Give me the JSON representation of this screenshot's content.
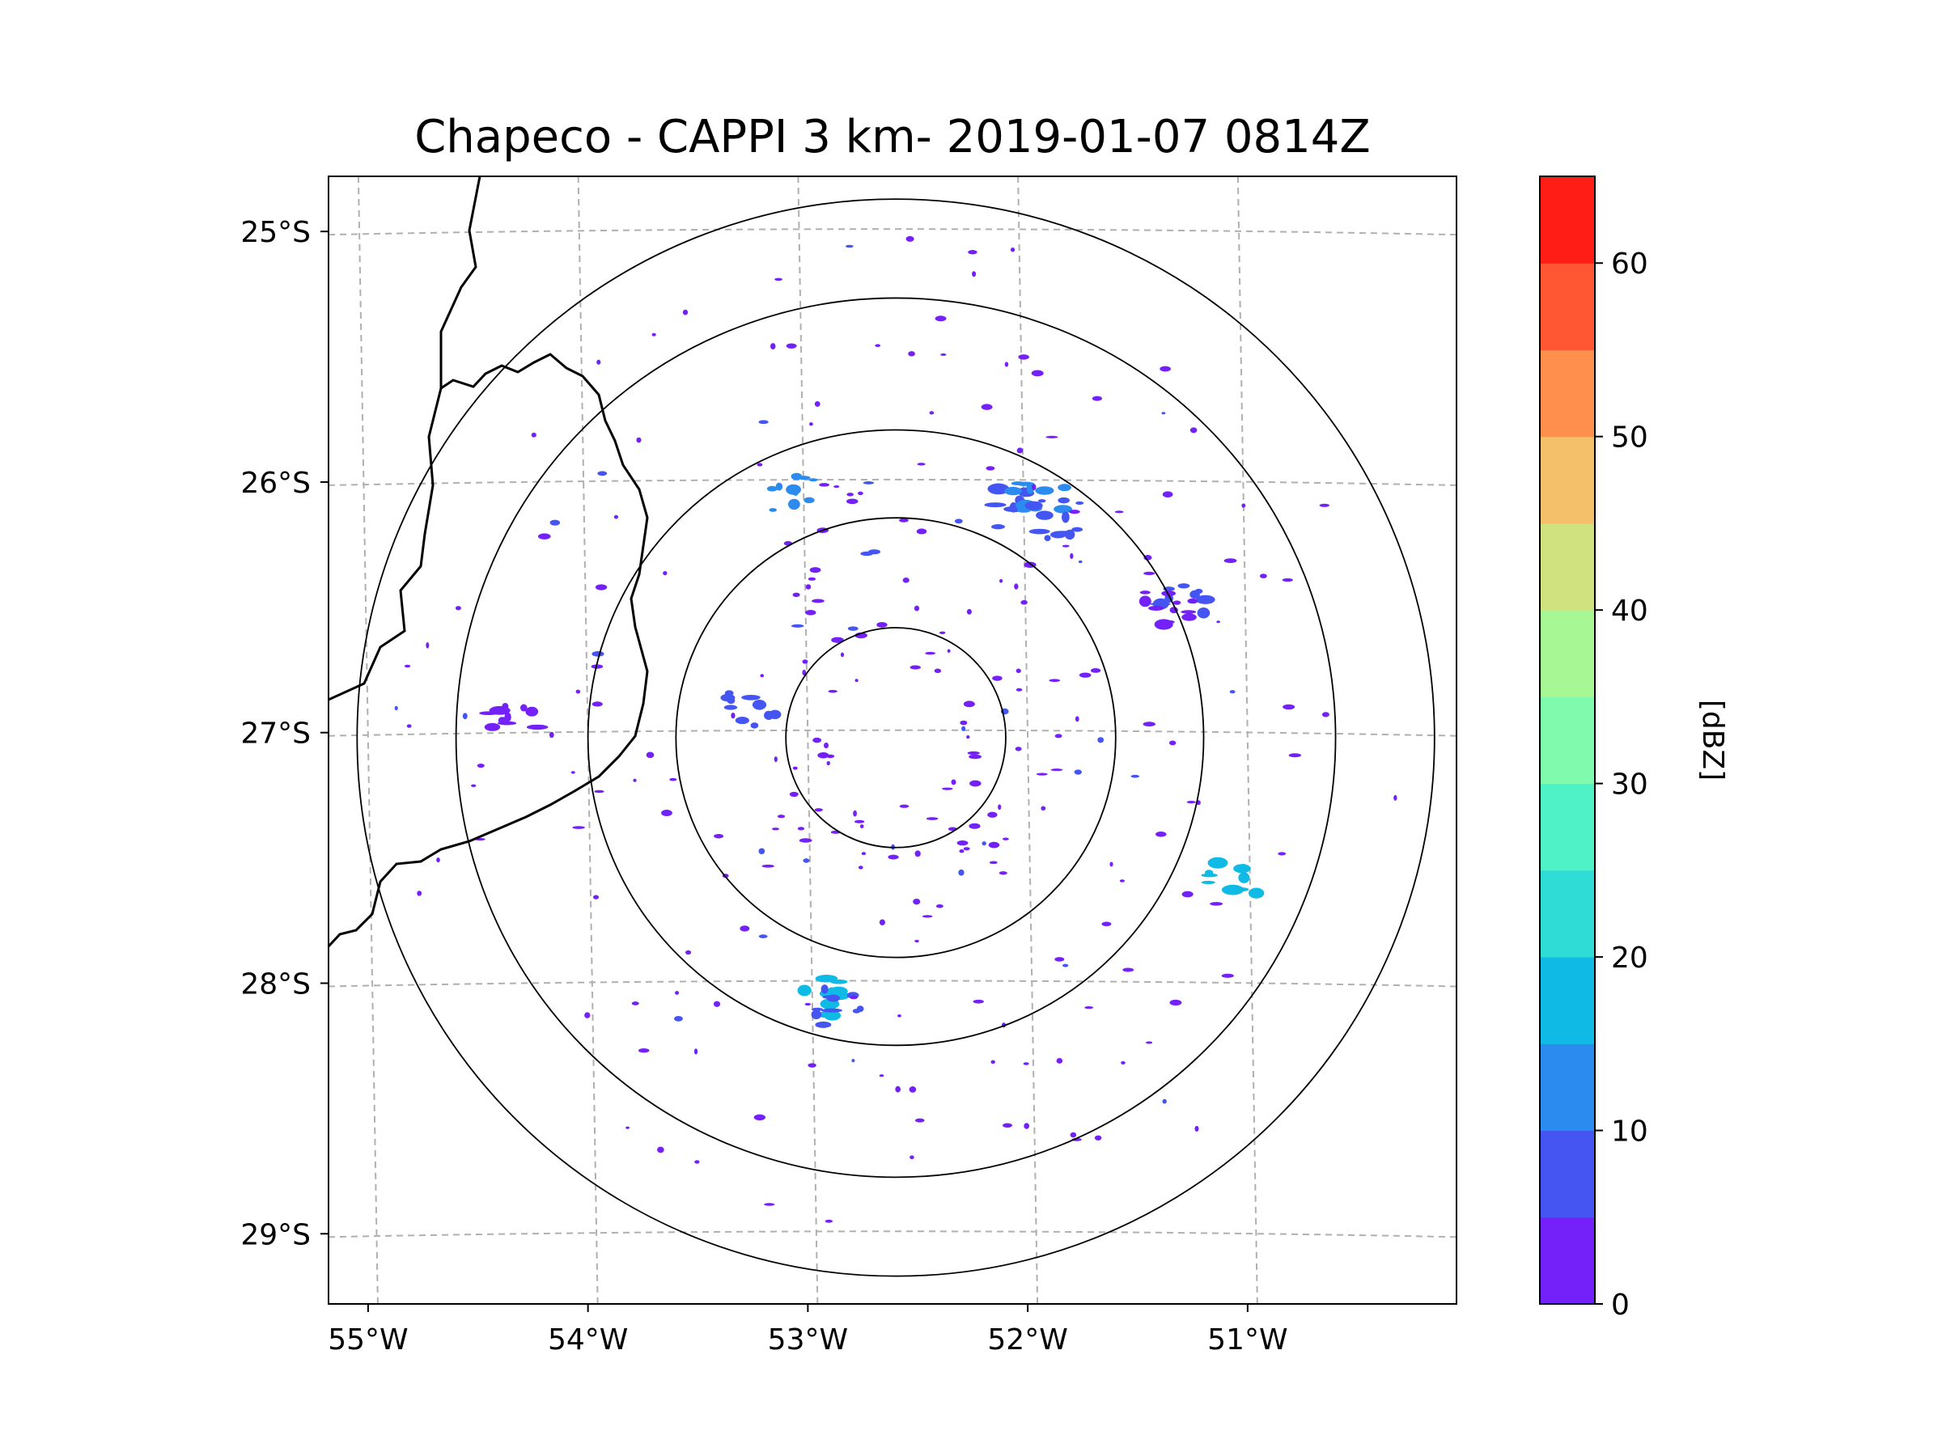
{
  "chart_data": {
    "type": "heatmap",
    "title": "Chapeco - CAPPI 3 km- 2019-01-07 0814Z",
    "xlabel": "",
    "ylabel": "",
    "x_ticks": [
      {
        "value": -55,
        "label": "55°W"
      },
      {
        "value": -54,
        "label": "54°W"
      },
      {
        "value": -53,
        "label": "53°W"
      },
      {
        "value": -52,
        "label": "52°W"
      },
      {
        "value": -51,
        "label": "51°W"
      }
    ],
    "y_ticks": [
      {
        "value": -25,
        "label": "25°S"
      },
      {
        "value": -26,
        "label": "26°S"
      },
      {
        "value": -27,
        "label": "27°S"
      },
      {
        "value": -28,
        "label": "28°S"
      },
      {
        "value": -29,
        "label": "29°S"
      }
    ],
    "xlim": [
      -55.18,
      -50.05
    ],
    "ylim": [
      -29.28,
      -24.78
    ],
    "grid": true,
    "radar_center": {
      "lon": -52.6,
      "lat": -27.02
    },
    "range_rings_deg": [
      0.5,
      1.0,
      1.4,
      2.0,
      2.45
    ],
    "colorbar": {
      "label": "[dBZ]",
      "min": 0,
      "max": 65,
      "ticks": [
        "0",
        "10",
        "20",
        "30",
        "40",
        "50",
        "60"
      ],
      "bins": [
        {
          "from": 0,
          "to": 5,
          "color": "#7420f8"
        },
        {
          "from": 5,
          "to": 10,
          "color": "#4455f2"
        },
        {
          "from": 10,
          "to": 15,
          "color": "#2c8bee"
        },
        {
          "from": 15,
          "to": 20,
          "color": "#0fbbe5"
        },
        {
          "from": 20,
          "to": 25,
          "color": "#2fdcd6"
        },
        {
          "from": 25,
          "to": 30,
          "color": "#4ff1c6"
        },
        {
          "from": 30,
          "to": 35,
          "color": "#80fbae"
        },
        {
          "from": 35,
          "to": 40,
          "color": "#a7f794"
        },
        {
          "from": 40,
          "to": 45,
          "color": "#cfe27f"
        },
        {
          "from": 45,
          "to": 50,
          "color": "#f4c06a"
        },
        {
          "from": 50,
          "to": 55,
          "color": "#ff8f4d"
        },
        {
          "from": 55,
          "to": 60,
          "color": "#ff5733"
        },
        {
          "from": 60,
          "to": 65,
          "color": "#ff1d16"
        }
      ]
    },
    "echo_clusters": [
      {
        "lon": -52.05,
        "lat": -26.1,
        "dbz": 8
      },
      {
        "lon": -51.95,
        "lat": -26.05,
        "dbz": 10
      },
      {
        "lon": -51.85,
        "lat": -26.15,
        "dbz": 6
      },
      {
        "lon": -53.05,
        "lat": -26.05,
        "dbz": 12
      },
      {
        "lon": -52.9,
        "lat": -28.05,
        "dbz": 15
      },
      {
        "lon": -52.88,
        "lat": -28.1,
        "dbz": 8
      },
      {
        "lon": -51.3,
        "lat": -26.45,
        "dbz": 6
      },
      {
        "lon": -51.35,
        "lat": -26.5,
        "dbz": 4
      },
      {
        "lon": -51.05,
        "lat": -27.6,
        "dbz": 18
      },
      {
        "lon": -53.25,
        "lat": -26.9,
        "dbz": 5
      },
      {
        "lon": -54.35,
        "lat": -26.93,
        "dbz": 4
      }
    ],
    "map_features": "state borders (Argentina/Santa Catarina/Rio Grande do Sul)"
  }
}
